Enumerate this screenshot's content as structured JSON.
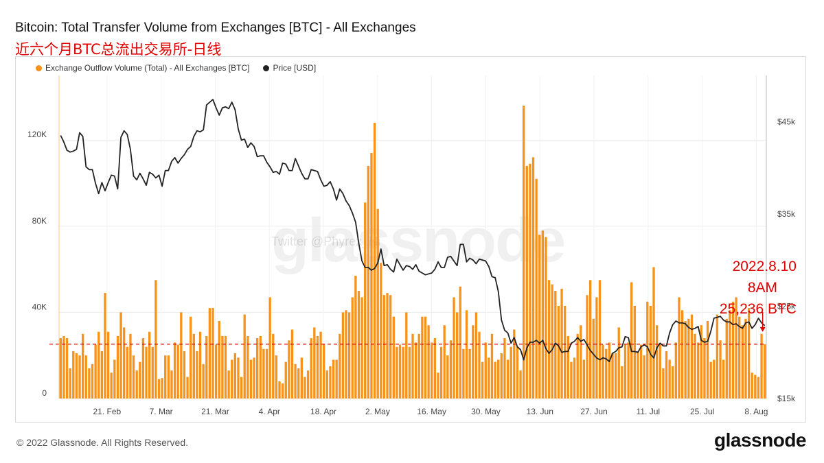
{
  "header": {
    "title": "Bitcoin: Total Transfer Volume from Exchanges [BTC] - All Exchanges",
    "subtitle_cn": "近六个月BTC总流出交易所-日线"
  },
  "legend": {
    "outflow": "Exchange Outflow Volume (Total) - All Exchanges [BTC]",
    "price": "Price [USD]"
  },
  "watermark": {
    "logo": "glassnode",
    "credit": "Twitter @Phyrex_Ni"
  },
  "annotation": {
    "line1": "2022.8.10",
    "line2": "8AM",
    "line3": "25,236 BTC"
  },
  "footer": {
    "copyright": "© 2022 Glassnode. All Rights Reserved.",
    "brand": "glassnode"
  },
  "colors": {
    "outflow": "#f7931a",
    "price": "#222222",
    "annotation": "#e00000"
  },
  "chart_data": {
    "type": "bar",
    "x_range": [
      "2022-02-09",
      "2022-08-10"
    ],
    "xticks": [
      "21. Feb",
      "7. Mar",
      "21. Mar",
      "4. Apr",
      "18. Apr",
      "2. May",
      "16. May",
      "30. May",
      "13. Jun",
      "27. Jun",
      "11. Jul",
      "25. Jul",
      "8. Aug"
    ],
    "y_left": {
      "ticks": [
        "0",
        "40K",
        "80K",
        "120K"
      ],
      "values": [
        0,
        40000,
        80000,
        120000
      ],
      "range": [
        0,
        150000
      ]
    },
    "y_right": {
      "ticks": [
        "$15k",
        "$25k",
        "$35k",
        "$45k"
      ],
      "values": [
        15000,
        25000,
        35000,
        45000
      ],
      "range": [
        15000,
        50000
      ],
      "scale": "linear"
    },
    "reference_line": {
      "value": 25236,
      "style": "dashed",
      "color": "#e00000"
    },
    "series": [
      {
        "name": "Exchange Outflow Volume (Total) - All Exchanges [BTC]",
        "kind": "bar",
        "values": [
          28000,
          29000,
          28000,
          14000,
          22000,
          21000,
          20000,
          30000,
          20000,
          14000,
          16000,
          25000,
          31000,
          22000,
          49000,
          31000,
          12000,
          18000,
          29000,
          40000,
          33000,
          24000,
          30000,
          20000,
          13000,
          17000,
          28000,
          24000,
          31000,
          24000,
          55000,
          9000,
          9500,
          20000,
          20000,
          13000,
          26000,
          25000,
          40000,
          22000,
          10000,
          38000,
          30000,
          22000,
          31000,
          16000,
          29000,
          42000,
          42000,
          25000,
          36000,
          29000,
          29000,
          13000,
          18000,
          21000,
          19000,
          10000,
          39000,
          29000,
          18000,
          19000,
          28000,
          29000,
          23000,
          23000,
          47000,
          30000,
          20000,
          8000,
          7000,
          17000,
          27000,
          32000,
          16000,
          14000,
          19000,
          10000,
          13000,
          28000,
          33000,
          29000,
          31000,
          25000,
          13000,
          15000,
          18000,
          18000,
          30000,
          40000,
          41000,
          40000,
          47000,
          57000,
          50000,
          47000,
          91000,
          108000,
          114000,
          128000,
          88000,
          63000,
          48000,
          49000,
          48000,
          38000,
          24000,
          25000,
          24000,
          40000,
          24000,
          30000,
          26000,
          30000,
          38000,
          38000,
          34000,
          26000,
          28000,
          12000,
          24000,
          34000,
          20000,
          27000,
          47000,
          40000,
          52000,
          23000,
          41000,
          23000,
          34000,
          40000,
          31000,
          17000,
          26000,
          19000,
          30000,
          17000,
          18000,
          21000,
          28000,
          18000,
          24000,
          32000,
          24000,
          13000,
          136000,
          108000,
          109000,
          112000,
          102000,
          76000,
          78000,
          75000,
          55000,
          53000,
          50000,
          43000,
          51000,
          43000,
          29000,
          17000,
          19000,
          30000,
          34000,
          18000,
          48000,
          55000,
          37000,
          47000,
          55000,
          25000,
          23000,
          26000,
          21000,
          21000,
          33000,
          15000,
          25000,
          26000,
          54000,
          43000,
          22000,
          25000,
          20000,
          45000,
          43000,
          61000,
          34000,
          25000,
          14000,
          22000,
          18000,
          15000,
          26000,
          47000,
          41000,
          36000,
          37000,
          39000,
          30000,
          26000,
          34000,
          28000,
          36000,
          17000,
          18000,
          39000,
          27000,
          18000,
          37000,
          41000,
          45000,
          47000,
          38000,
          34000,
          37000,
          42000,
          12000,
          11000,
          10000,
          30000,
          25236
        ]
      },
      {
        "name": "Price [USD]",
        "kind": "line",
        "values": [
          43500,
          42800,
          41900,
          41700,
          41800,
          42000,
          43800,
          43400,
          40100,
          39800,
          39800,
          38300,
          37200,
          38400,
          37500,
          38400,
          39200,
          39100,
          37700,
          43300,
          44000,
          43600,
          42000,
          39100,
          38700,
          39400,
          38800,
          38100,
          39500,
          39300,
          38900,
          39200,
          38000,
          39700,
          39700,
          40700,
          41100,
          40500,
          41000,
          41400,
          42000,
          42300,
          43400,
          44000,
          43900,
          44100,
          46800,
          47100,
          47400,
          46500,
          45700,
          46500,
          46600,
          46400,
          47100,
          46300,
          44200,
          43000,
          43100,
          42200,
          42700,
          42300,
          41200,
          41300,
          41300,
          40600,
          40100,
          39500,
          39600,
          39300,
          40500,
          40400,
          39700,
          39700,
          41000,
          40200,
          39400,
          38800,
          38800,
          39800,
          39700,
          39600,
          38700,
          38000,
          38100,
          38500,
          37700,
          36500,
          37700,
          37200,
          36400,
          35900,
          35100,
          34100,
          31800,
          29900,
          29200,
          29200,
          28900,
          29100,
          29700,
          31200,
          29400,
          29500,
          29000,
          28700,
          30100,
          29500,
          28900,
          29400,
          29300,
          29000,
          29500,
          28800,
          28600,
          28400,
          28500,
          28600,
          29000,
          29800,
          29200,
          29200,
          30300,
          30400,
          29900,
          29400,
          31700,
          31700,
          29800,
          30200,
          30000,
          29600,
          30100,
          30000,
          29900,
          29300,
          28200,
          28100,
          26600,
          23500,
          22400,
          22100,
          21000,
          21600,
          20600,
          20300,
          19200,
          20500,
          21100,
          21100,
          21300,
          21000,
          21300,
          20400,
          19900,
          20300,
          21000,
          20700,
          20000,
          20100,
          20100,
          21000,
          21200,
          21600,
          21200,
          21400,
          20800,
          20200,
          19800,
          19400,
          19200,
          19400,
          19300,
          19000,
          19900,
          20100,
          20500,
          20600,
          21700,
          21600,
          20100,
          20100,
          20000,
          20600,
          20800,
          20600,
          19800,
          19400,
          20500,
          21000,
          20700,
          20700,
          22100,
          23000,
          23400,
          23200,
          23200,
          23100,
          22700,
          22500,
          22600,
          22800,
          21300,
          21100,
          21200,
          22300,
          23700,
          23800,
          23900,
          23500,
          23300,
          23300,
          23000,
          23100,
          22800,
          22600,
          23200,
          23300,
          22600,
          23000,
          23700,
          23200,
          22900
        ]
      }
    ]
  }
}
